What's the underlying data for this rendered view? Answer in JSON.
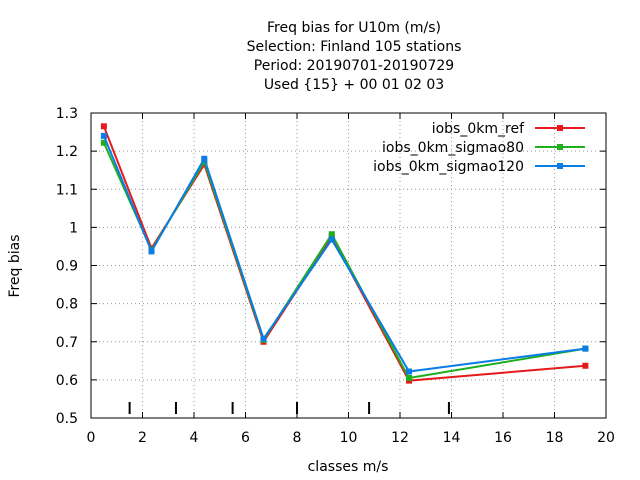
{
  "chart_data": {
    "type": "line",
    "title_lines": [
      "Freq bias  for U10m (m/s)",
      "Selection: Finland    105 stations",
      "Period: 20190701-20190729",
      "Used {15} + 00 01 02 03"
    ],
    "xlabel": "classes m/s",
    "ylabel": "Freq bias",
    "xlim": [
      0,
      20
    ],
    "ylim": [
      0.5,
      1.3
    ],
    "xticks": [
      0,
      2,
      4,
      6,
      8,
      10,
      12,
      14,
      16,
      18,
      20
    ],
    "xtick_labels": [
      "0",
      "2",
      "4",
      "6",
      "8",
      "10",
      "12",
      "14",
      "16",
      "18",
      "20"
    ],
    "yticks": [
      0.5,
      0.6,
      0.7,
      0.8,
      0.9,
      1.0,
      1.1,
      1.2,
      1.3
    ],
    "ytick_labels": [
      "0.5",
      "0.6",
      "0.7",
      "0.8",
      "0.9",
      "1",
      "1.1",
      "1.2",
      "1.3"
    ],
    "class_boundaries": [
      1.5,
      3.3,
      5.5,
      8.0,
      10.8,
      13.9
    ],
    "grid": true,
    "legend_position": "top-right",
    "series": [
      {
        "name": "iobs_0km_ref",
        "color": "#e41a1c",
        "x": [
          0.5,
          2.35,
          4.4,
          6.7,
          9.35,
          12.35,
          19.2
        ],
        "y": [
          1.265,
          0.945,
          1.165,
          0.7,
          0.975,
          0.598,
          0.637
        ]
      },
      {
        "name": "iobs_0km_sigmao80",
        "color": "#1fae1f",
        "x": [
          0.5,
          2.35,
          4.4,
          6.7,
          9.35,
          12.35,
          19.2
        ],
        "y": [
          1.222,
          0.94,
          1.172,
          0.705,
          0.982,
          0.605,
          0.682
        ]
      },
      {
        "name": "iobs_0km_sigmao120",
        "color": "#0a7ce6",
        "x": [
          0.5,
          2.35,
          4.4,
          6.7,
          9.35,
          12.35,
          19.2
        ],
        "y": [
          1.24,
          0.937,
          1.18,
          0.708,
          0.968,
          0.622,
          0.682
        ]
      }
    ]
  }
}
